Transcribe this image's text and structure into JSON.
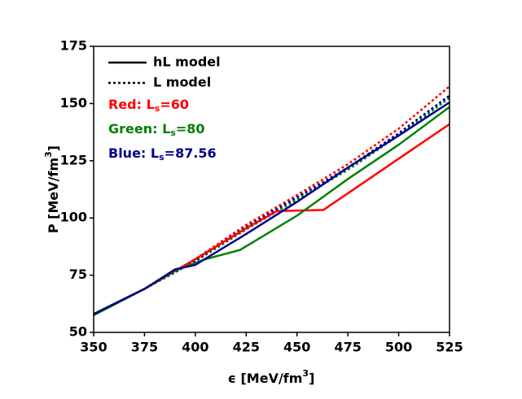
{
  "chart_data": {
    "type": "line",
    "xlabel": {
      "main": "ϵ [MeV/fm",
      "sup": "3",
      "end": "]"
    },
    "ylabel": {
      "main": "P [MeV/fm",
      "sup": "3",
      "end": "]"
    },
    "xlim": [
      350,
      525
    ],
    "xticks": [
      350,
      375,
      400,
      425,
      450,
      475,
      500,
      525
    ],
    "ylim": [
      50,
      175
    ],
    "yticks": [
      50,
      75,
      100,
      125,
      150,
      175
    ],
    "legend": [
      {
        "label": "hL model",
        "dashed": false
      },
      {
        "label": "L model",
        "dashed": true
      }
    ],
    "annotations": [
      {
        "text": "Red: L",
        "sub": "s",
        "end": "=60",
        "color": "#ff0000"
      },
      {
        "text": "Green: L",
        "sub": "s",
        "end": "=80",
        "color": "#008000"
      },
      {
        "text": "Blue: L",
        "sub": "s",
        "end": "=87.56",
        "color": "#00008b"
      }
    ],
    "series": [
      {
        "color": "#ff0000",
        "dashed": true,
        "x": [
          350,
          375,
          400,
          425,
          450,
          475,
          500,
          525
        ],
        "values": [
          58,
          69,
          82,
          97,
          110,
          123.5,
          139,
          157.5
        ]
      },
      {
        "color": "#008000",
        "dashed": true,
        "x": [
          350,
          375,
          400,
          425,
          450,
          475,
          500,
          525
        ],
        "values": [
          57.5,
          69,
          81,
          95,
          108,
          121,
          136,
          152.5
        ]
      },
      {
        "color": "#00008b",
        "dashed": true,
        "x": [
          350,
          375,
          400,
          425,
          450,
          475,
          500,
          525
        ],
        "values": [
          58,
          69,
          81.5,
          96,
          109,
          122,
          137,
          153.5
        ]
      },
      {
        "color": "#ff0000",
        "dashed": false,
        "x": [
          350,
          375,
          400,
          425,
          440,
          463,
          525
        ],
        "values": [
          58,
          69,
          82,
          95.5,
          103,
          103.5,
          141
        ]
      },
      {
        "color": "#008000",
        "dashed": false,
        "x": [
          350,
          375,
          390,
          405,
          422,
          450,
          475,
          500,
          525
        ],
        "values": [
          57.5,
          69,
          77,
          82,
          86,
          101,
          117,
          132,
          148.5
        ]
      },
      {
        "color": "#00008b",
        "dashed": false,
        "x": [
          350,
          375,
          390,
          400,
          425,
          450,
          475,
          500,
          525
        ],
        "values": [
          58,
          69,
          77.5,
          79.5,
          93,
          107,
          122,
          136,
          150.5
        ]
      }
    ]
  }
}
